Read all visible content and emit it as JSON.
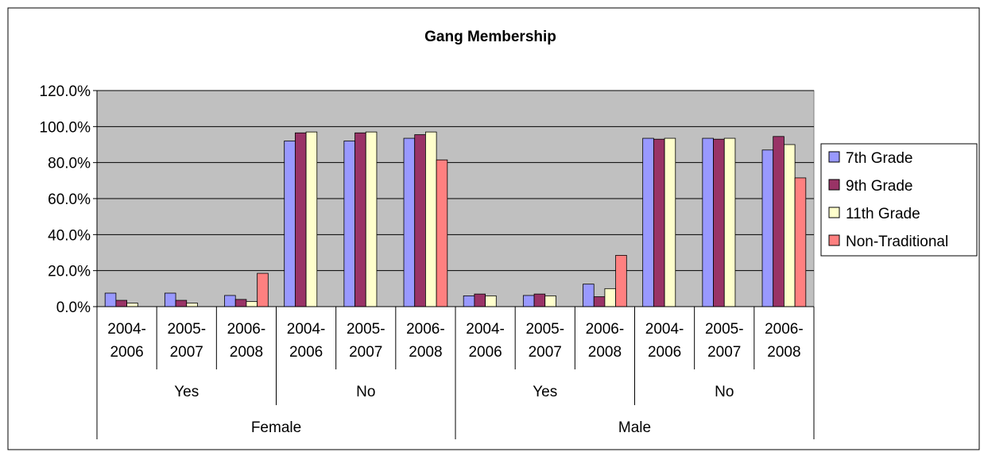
{
  "chart_data": {
    "type": "bar",
    "title": "Gang Membership",
    "colors": {
      "plot_background": "#c0c0c0",
      "gridline": "#000000"
    },
    "grid": true,
    "legend_position": "right",
    "ylim": [
      0,
      120
    ],
    "y_ticks": [
      "0.0%",
      "20.0%",
      "40.0%",
      "60.0%",
      "80.0%",
      "100.0%",
      "120.0%"
    ],
    "x_levels": {
      "period": [
        [
          "2004-",
          "2006"
        ],
        [
          "2005-",
          "2007"
        ],
        [
          "2006-",
          "2008"
        ],
        [
          "2004-",
          "2006"
        ],
        [
          "2005-",
          "2007"
        ],
        [
          "2006-",
          "2008"
        ],
        [
          "2004-",
          "2006"
        ],
        [
          "2005-",
          "2007"
        ],
        [
          "2006-",
          "2008"
        ],
        [
          "2004-",
          "2006"
        ],
        [
          "2005-",
          "2007"
        ],
        [
          "2006-",
          "2008"
        ]
      ],
      "answer": [
        "Yes",
        "No",
        "Yes",
        "No"
      ],
      "gender": [
        "Female",
        "Male"
      ]
    },
    "series": [
      {
        "name": "7th Grade",
        "color": "#9999ff",
        "values": [
          7.5,
          7.5,
          6.2,
          92.0,
          92.0,
          93.5,
          6.0,
          6.2,
          12.5,
          93.5,
          93.5,
          87.0
        ]
      },
      {
        "name": "9th Grade",
        "color": "#993366",
        "values": [
          3.5,
          3.5,
          4.0,
          96.5,
          96.5,
          95.5,
          7.0,
          7.0,
          5.5,
          93.0,
          93.0,
          94.5
        ]
      },
      {
        "name": "11th Grade",
        "color": "#ffffcc",
        "values": [
          2.0,
          2.0,
          2.8,
          97.0,
          97.0,
          97.0,
          6.0,
          6.0,
          10.0,
          93.5,
          93.5,
          90.0
        ]
      },
      {
        "name": "Non-Traditional",
        "color": "#ff8080",
        "values": [
          null,
          null,
          18.5,
          null,
          null,
          81.5,
          null,
          null,
          28.5,
          null,
          null,
          71.5
        ]
      }
    ]
  }
}
